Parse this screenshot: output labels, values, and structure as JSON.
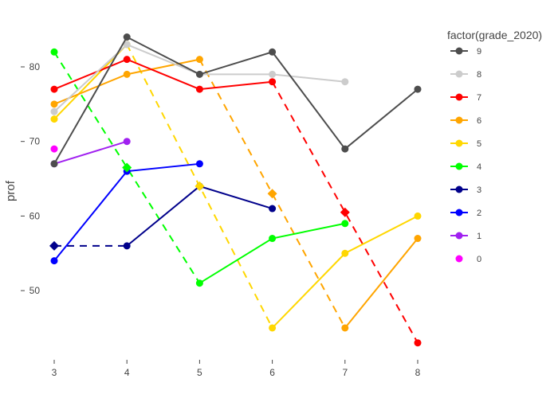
{
  "chart_data": {
    "type": "line",
    "xlabel": "",
    "ylabel": "prof",
    "xlim": [
      2.7,
      8.4
    ],
    "ylim": [
      41,
      88
    ],
    "xticks": [
      3,
      4,
      5,
      6,
      7,
      8
    ],
    "yticks": [
      50,
      60,
      70,
      80
    ],
    "grid": false,
    "legend": {
      "title": "factor(grade_2020)",
      "placement": "right"
    },
    "series": [
      {
        "name": "9",
        "color": "#4d4d4d",
        "segments": [
          [
            [
              3,
              67
            ],
            [
              4,
              84
            ],
            [
              5,
              79
            ],
            [
              6,
              82
            ],
            [
              7,
              69
            ],
            [
              8,
              77
            ]
          ]
        ]
      },
      {
        "name": "8",
        "color": "#cccccc",
        "segments": [
          [
            [
              3,
              74
            ],
            [
              4,
              83
            ],
            [
              5,
              79
            ],
            [
              6,
              79
            ],
            [
              7,
              78
            ]
          ]
        ]
      },
      {
        "name": "7",
        "color": "#ff0000",
        "segments": [
          [
            [
              3,
              77
            ],
            [
              4,
              81
            ],
            [
              5,
              77
            ],
            [
              6,
              78
            ]
          ],
          [
            [
              8,
              43
            ]
          ]
        ]
      },
      {
        "name": "6",
        "color": "#ffa500",
        "segments": [
          [
            [
              3,
              75
            ],
            [
              4,
              79
            ],
            [
              5,
              81
            ]
          ],
          [
            [
              7,
              45
            ],
            [
              8,
              57
            ]
          ]
        ]
      },
      {
        "name": "5",
        "color": "#ffd700",
        "segments": [
          [
            [
              3,
              73
            ],
            [
              4,
              83
            ]
          ],
          [
            [
              6,
              45
            ],
            [
              7,
              55
            ],
            [
              8,
              60
            ]
          ]
        ]
      },
      {
        "name": "4",
        "color": "#00ff00",
        "segments": [
          [
            [
              3,
              82
            ]
          ],
          [
            [
              5,
              51
            ],
            [
              6,
              57
            ],
            [
              7,
              59
            ]
          ]
        ]
      },
      {
        "name": "3",
        "color": "#00008b",
        "segments": [
          [
            [
              4,
              56
            ],
            [
              5,
              64
            ],
            [
              6,
              61
            ]
          ]
        ]
      },
      {
        "name": "2",
        "color": "#0000ff",
        "segments": [
          [
            [
              3,
              54
            ],
            [
              4,
              66
            ],
            [
              5,
              67
            ]
          ]
        ]
      },
      {
        "name": "1",
        "color": "#a020f0",
        "segments": [
          [
            [
              3,
              67
            ],
            [
              4,
              70
            ]
          ]
        ]
      },
      {
        "name": "0",
        "color": "#ff00ff",
        "segments": [
          [
            [
              3,
              69
            ]
          ]
        ]
      }
    ],
    "dashed": [
      {
        "color": "#00ff00",
        "points": [
          [
            3,
            82
          ],
          [
            4,
            66.5
          ],
          [
            5,
            51
          ]
        ],
        "diamond": [
          4,
          66.5
        ]
      },
      {
        "color": "#ffd700",
        "points": [
          [
            4,
            83
          ],
          [
            5,
            64
          ],
          [
            6,
            45
          ]
        ],
        "diamond": [
          5,
          64
        ]
      },
      {
        "color": "#ffa500",
        "points": [
          [
            5,
            81
          ],
          [
            6,
            63
          ],
          [
            7,
            45
          ]
        ],
        "diamond": [
          6,
          63
        ]
      },
      {
        "color": "#ff0000",
        "points": [
          [
            6,
            78
          ],
          [
            7,
            60.5
          ],
          [
            8,
            43
          ]
        ],
        "diamond": [
          7,
          60.5
        ]
      },
      {
        "color": "#00008b",
        "points": [
          [
            3,
            56
          ],
          [
            4,
            56
          ]
        ],
        "diamond": [
          3,
          56
        ]
      }
    ]
  }
}
